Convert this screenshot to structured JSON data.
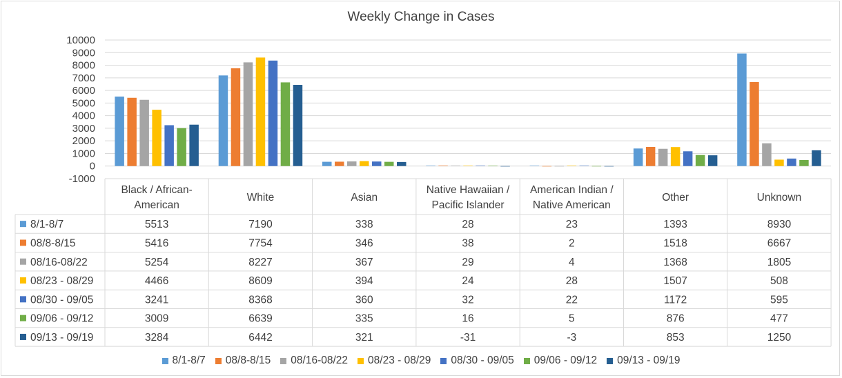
{
  "chart_data": {
    "type": "bar",
    "title": "Weekly Change in Cases",
    "ylim": [
      -1000,
      10000
    ],
    "ytick_step": 1000,
    "grid": true,
    "legend_placement": "bottom",
    "categories": [
      [
        "Black / African-",
        "American"
      ],
      [
        "White"
      ],
      [
        "Asian"
      ],
      [
        "Native Hawaiian /",
        "Pacific Islander"
      ],
      [
        "American Indian /",
        "Native American"
      ],
      [
        "Other"
      ],
      [
        "Unknown"
      ]
    ],
    "series": [
      {
        "name": "8/1-8/7",
        "color": "#5b9bd5",
        "values": [
          5513,
          7190,
          338,
          28,
          23,
          1393,
          8930
        ]
      },
      {
        "name": "08/8-8/15",
        "color": "#ed7d31",
        "values": [
          5416,
          7754,
          346,
          38,
          2,
          1518,
          6667
        ]
      },
      {
        "name": "08/16-08/22",
        "color": "#a5a5a5",
        "values": [
          5254,
          8227,
          367,
          29,
          4,
          1368,
          1805
        ]
      },
      {
        "name": "08/23 - 08/29",
        "color": "#ffc000",
        "values": [
          4466,
          8609,
          394,
          24,
          28,
          1507,
          508
        ]
      },
      {
        "name": "08/30 - 09/05",
        "color": "#4472c4",
        "values": [
          3241,
          8368,
          360,
          32,
          22,
          1172,
          595
        ]
      },
      {
        "name": "09/06 - 09/12",
        "color": "#70ad47",
        "values": [
          3009,
          6639,
          335,
          16,
          5,
          876,
          477
        ]
      },
      {
        "name": "09/13 - 09/19",
        "color": "#255e91",
        "values": [
          3284,
          6442,
          321,
          -31,
          -3,
          853,
          1250
        ]
      }
    ]
  }
}
